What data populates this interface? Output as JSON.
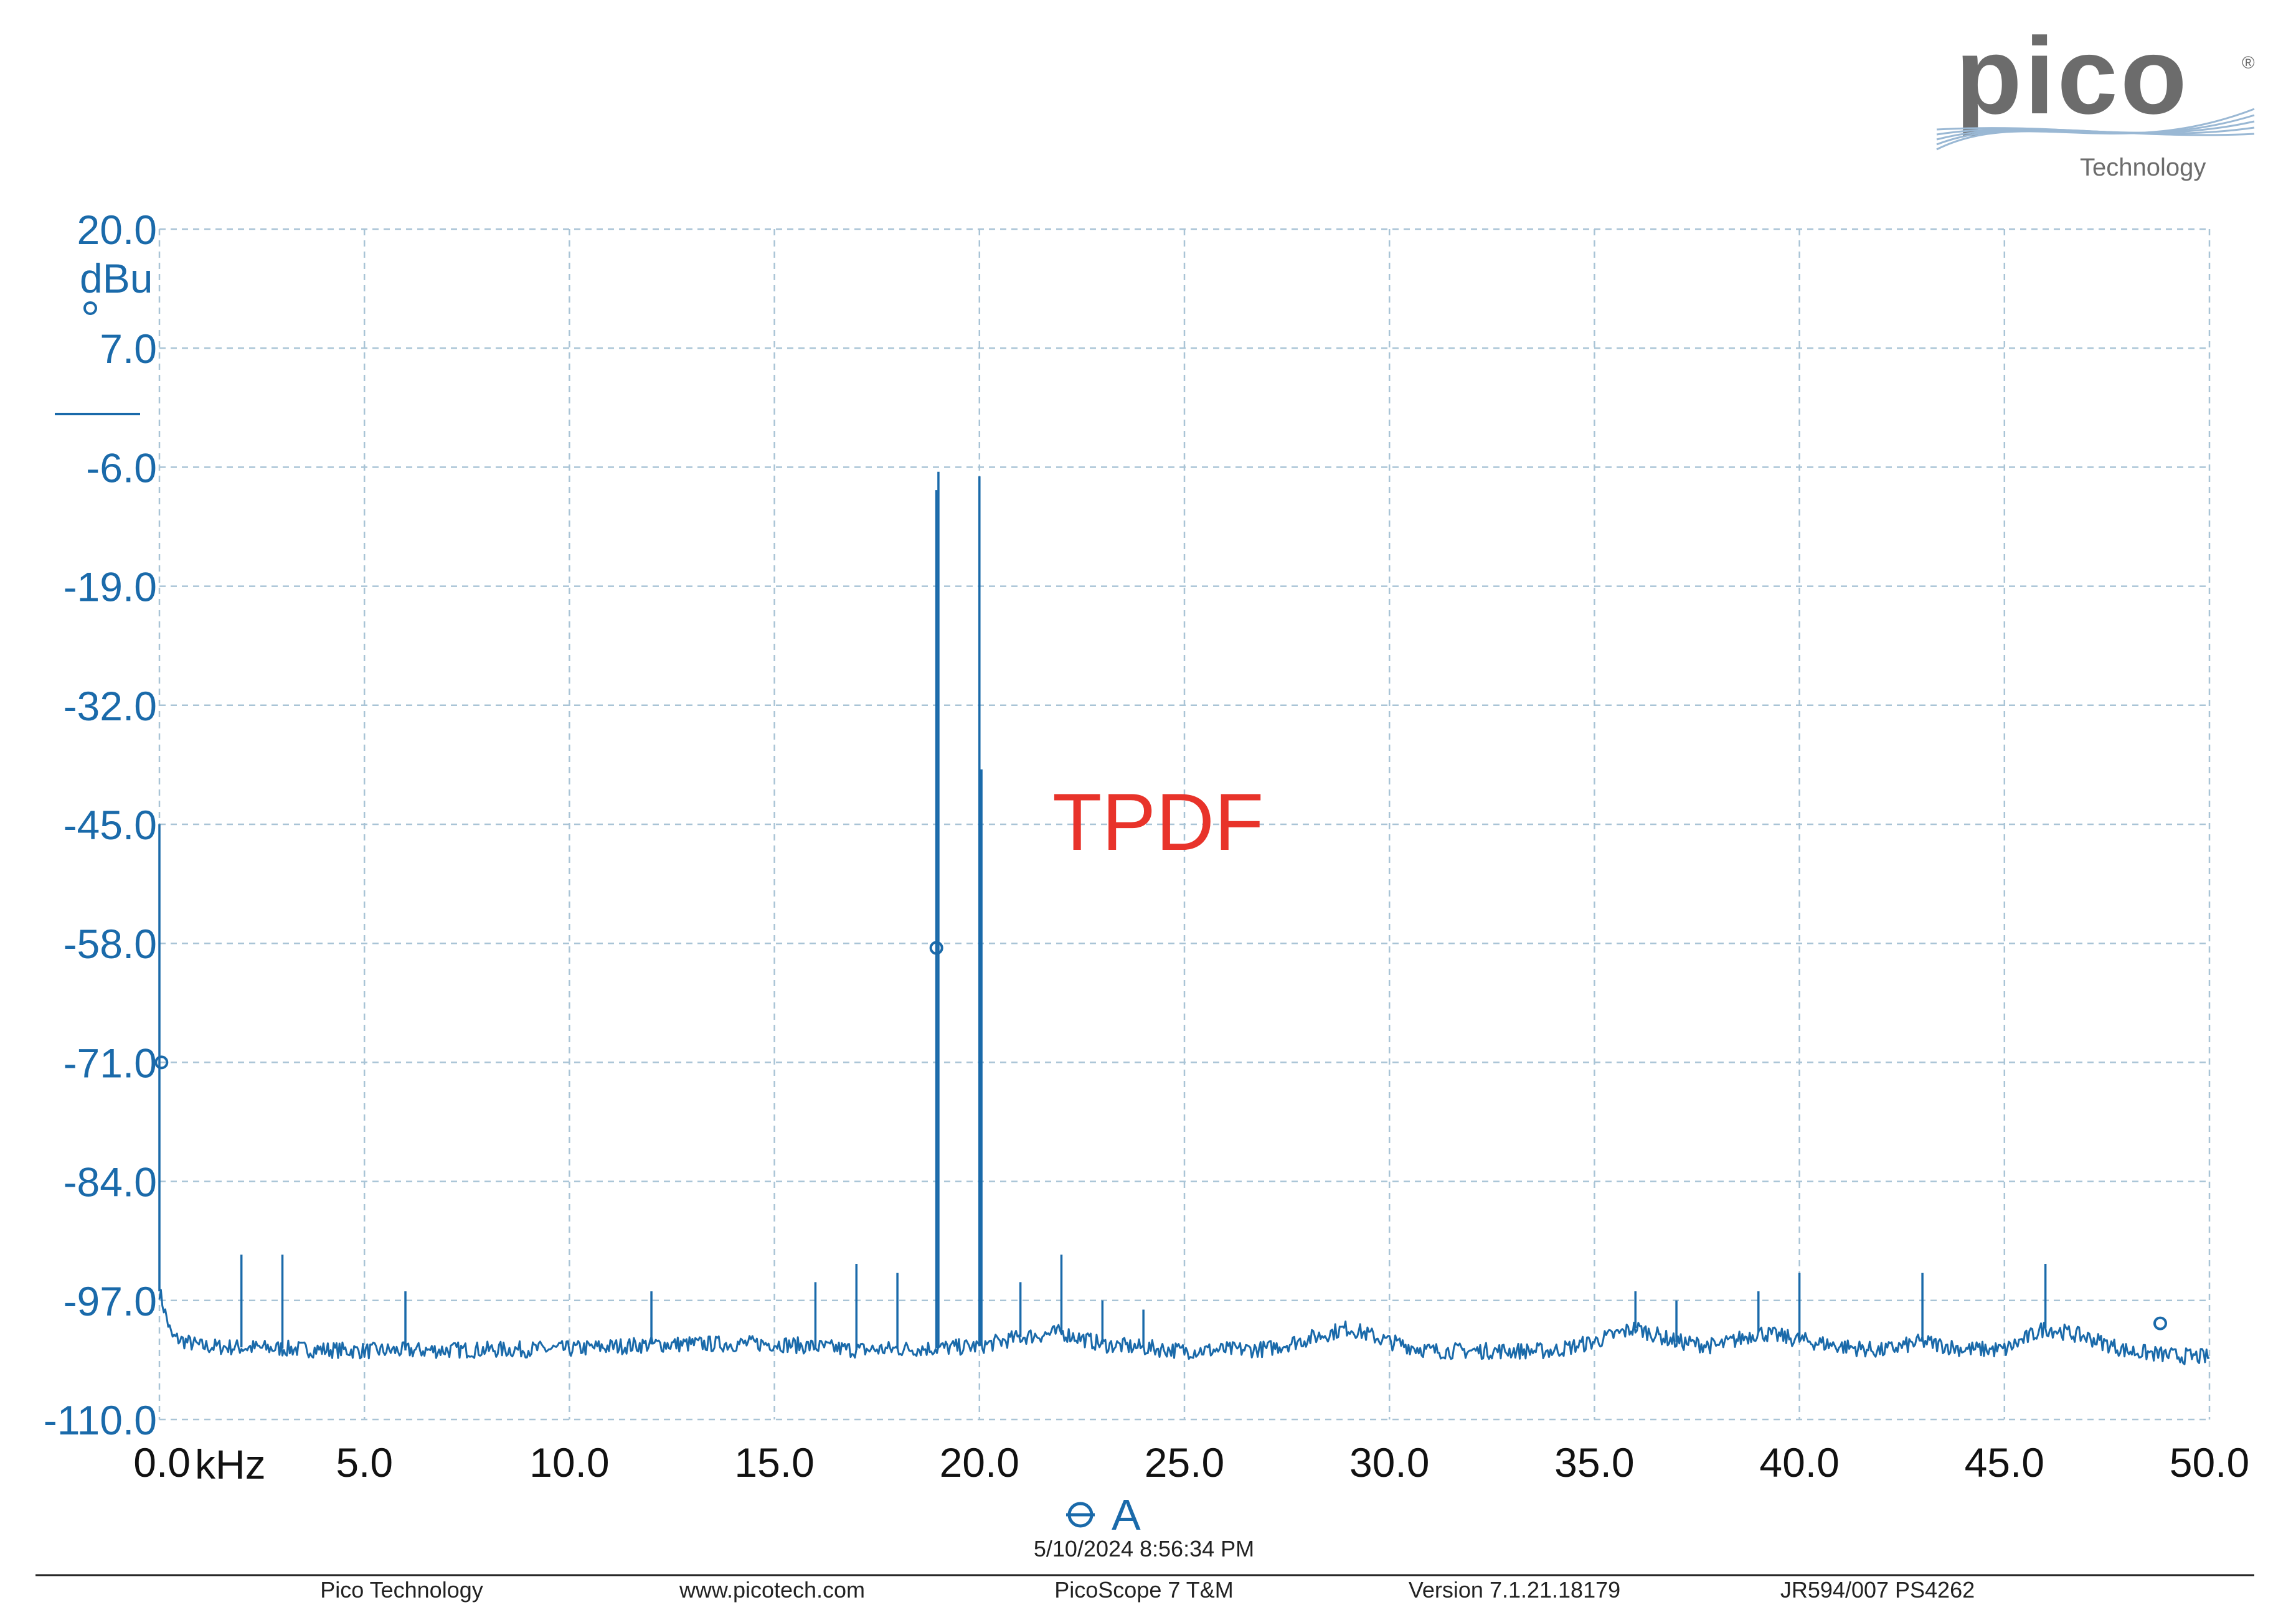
{
  "chart_data": {
    "type": "line",
    "title": "",
    "annotation": "TPDF",
    "xlabel": "",
    "ylabel": "",
    "x_unit": "kHz",
    "y_unit": "dBu",
    "xlim": [
      0,
      50
    ],
    "ylim": [
      -110,
      20
    ],
    "x_ticks": [
      "0.0",
      "5.0",
      "10.0",
      "15.0",
      "20.0",
      "25.0",
      "30.0",
      "35.0",
      "40.0",
      "45.0",
      "50.0"
    ],
    "y_ticks": [
      "20.0",
      "7.0",
      "-6.0",
      "-19.0",
      "-32.0",
      "-45.0",
      "-58.0",
      "-71.0",
      "-84.0",
      "-97.0",
      "-110.0"
    ],
    "grid": true,
    "channel": "A",
    "series": [
      {
        "color": "#1a6aaa",
        "noise_floor": [
          [
            0.0,
            -96
          ],
          [
            0.3,
            -101
          ],
          [
            1,
            -102
          ],
          [
            5,
            -102.5
          ],
          [
            10,
            -102.3
          ],
          [
            12,
            -101.8
          ],
          [
            15,
            -101.7
          ],
          [
            17,
            -102.4
          ],
          [
            19,
            -102.2
          ],
          [
            20,
            -102
          ],
          [
            21,
            -101
          ],
          [
            22,
            -100.5
          ],
          [
            23,
            -101.8
          ],
          [
            25,
            -102.5
          ],
          [
            27,
            -102.3
          ],
          [
            28,
            -101.2
          ],
          [
            29,
            -100
          ],
          [
            30,
            -101.5
          ],
          [
            31,
            -102.5
          ],
          [
            34,
            -102.5
          ],
          [
            35,
            -101.5
          ],
          [
            36,
            -100
          ],
          [
            37,
            -101.5
          ],
          [
            38,
            -102
          ],
          [
            39,
            -100.5
          ],
          [
            40,
            -101.3
          ],
          [
            41,
            -102
          ],
          [
            42,
            -102.5
          ],
          [
            43,
            -101.5
          ],
          [
            44,
            -102.3
          ],
          [
            45,
            -102.4
          ],
          [
            46,
            -100
          ],
          [
            47,
            -101
          ],
          [
            48,
            -102.5
          ],
          [
            49,
            -103
          ],
          [
            50,
            -103.2
          ]
        ],
        "peaks": [
          [
            0.0,
            -45
          ],
          [
            2.0,
            -92
          ],
          [
            3.0,
            -92
          ],
          [
            6.0,
            -96
          ],
          [
            12.0,
            -96
          ],
          [
            16.0,
            -95
          ],
          [
            17.0,
            -93
          ],
          [
            18.0,
            -94
          ],
          [
            18.95,
            -8.5
          ],
          [
            19.0,
            -6.5
          ],
          [
            20.0,
            -7.0
          ],
          [
            20.05,
            -39
          ],
          [
            21.0,
            -95
          ],
          [
            22.0,
            -92
          ],
          [
            23.0,
            -97
          ],
          [
            24.0,
            -98
          ],
          [
            36.0,
            -96
          ],
          [
            37.0,
            -97
          ],
          [
            39.0,
            -96
          ],
          [
            40.0,
            -94
          ],
          [
            43.0,
            -94
          ],
          [
            46.0,
            -93
          ]
        ]
      }
    ]
  },
  "footer": {
    "date": "5/10/2024 8:56:34 PM",
    "items": [
      "Pico Technology",
      "www.picotech.com",
      "PicoScope 7 T&M",
      "Version 7.1.21.18179",
      "JR594/007 PS4262"
    ]
  },
  "logo": {
    "name": "pico",
    "sub": "Technology",
    "mark": "®"
  }
}
